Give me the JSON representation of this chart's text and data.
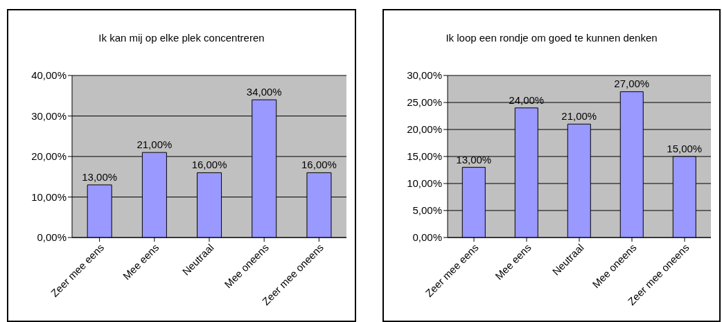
{
  "chart_data": [
    {
      "type": "bar",
      "title": "Ik kan mij op elke plek concentreren",
      "categories": [
        "Zeer mee eens",
        "Mee eens",
        "Neutraal",
        "Mee oneens",
        "Zeer mee oneens"
      ],
      "values": [
        13,
        21,
        16,
        34,
        16
      ],
      "value_labels": [
        "13,00%",
        "21,00%",
        "16,00%",
        "34,00%",
        "16,00%"
      ],
      "color": "#9999ff",
      "ylim": [
        0,
        40
      ],
      "yticks": [
        {
          "value": 0,
          "label": "0,00%"
        },
        {
          "value": 10,
          "label": "10,00%"
        },
        {
          "value": 20,
          "label": "20,00%"
        },
        {
          "value": 30,
          "label": "30,00%"
        },
        {
          "value": 40,
          "label": "40,00%"
        }
      ],
      "grid": "y",
      "legend": false
    },
    {
      "type": "bar",
      "title": "Ik loop een rondje om goed te kunnen denken",
      "categories": [
        "Zeer mee eens",
        "Mee eens",
        "Neutraal",
        "Mee oneens",
        "Zeer mee oneens"
      ],
      "values": [
        13,
        24,
        21,
        27,
        15
      ],
      "value_labels": [
        "13,00%",
        "24,00%",
        "21,00%",
        "27,00%",
        "15,00%"
      ],
      "color": "#9999ff",
      "ylim": [
        0,
        30
      ],
      "yticks": [
        {
          "value": 0,
          "label": "0,00%"
        },
        {
          "value": 5,
          "label": "5,00%"
        },
        {
          "value": 10,
          "label": "10,00%"
        },
        {
          "value": 15,
          "label": "15,00%"
        },
        {
          "value": 20,
          "label": "20,00%"
        },
        {
          "value": 25,
          "label": "25,00%"
        },
        {
          "value": 30,
          "label": "30,00%"
        }
      ],
      "grid": "y",
      "legend": false
    }
  ]
}
